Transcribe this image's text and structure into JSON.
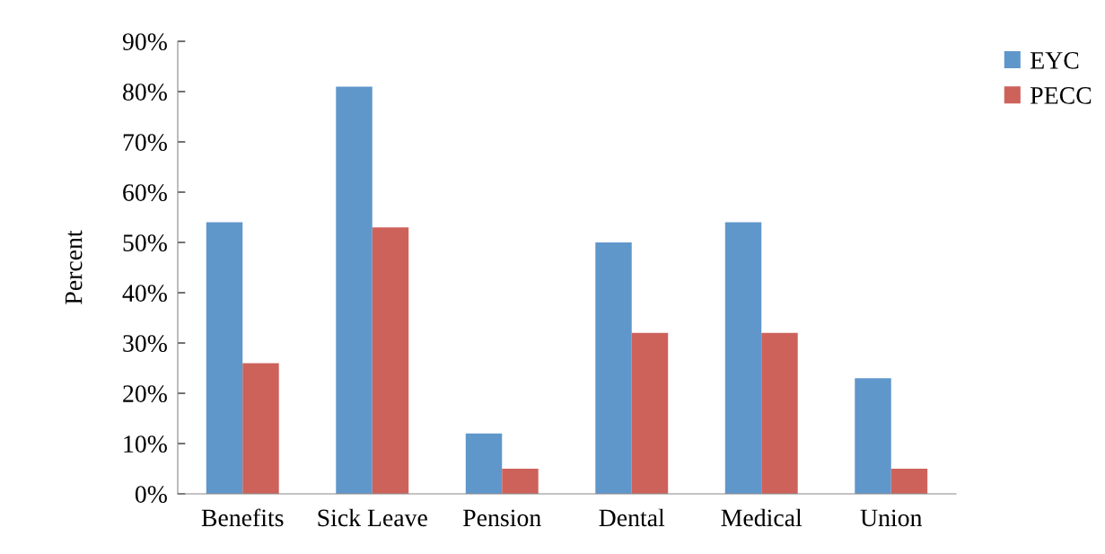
{
  "chart_data": {
    "type": "bar",
    "ylabel": "Percent",
    "categories": [
      "Benefits",
      "Sick Leave",
      "Pension",
      "Dental",
      "Medical",
      "Union"
    ],
    "series": [
      {
        "name": "EYC",
        "color": "#6097cb",
        "values": [
          54,
          81,
          12,
          50,
          54,
          23
        ]
      },
      {
        "name": "PECC",
        "color": "#cd625b",
        "values": [
          26,
          53,
          5,
          32,
          32,
          5
        ]
      }
    ],
    "ylim": [
      0,
      90
    ],
    "yticks": [
      {
        "value": 0,
        "label": "0%"
      },
      {
        "value": 10,
        "label": "10%"
      },
      {
        "value": 20,
        "label": "20%"
      },
      {
        "value": 30,
        "label": "30%"
      },
      {
        "value": 40,
        "label": "40%"
      },
      {
        "value": 50,
        "label": "50%"
      },
      {
        "value": 60,
        "label": "60%"
      },
      {
        "value": 70,
        "label": "70%"
      },
      {
        "value": 80,
        "label": "80%"
      },
      {
        "value": 90,
        "label": "90%"
      }
    ],
    "grid": false,
    "legend": "right"
  }
}
